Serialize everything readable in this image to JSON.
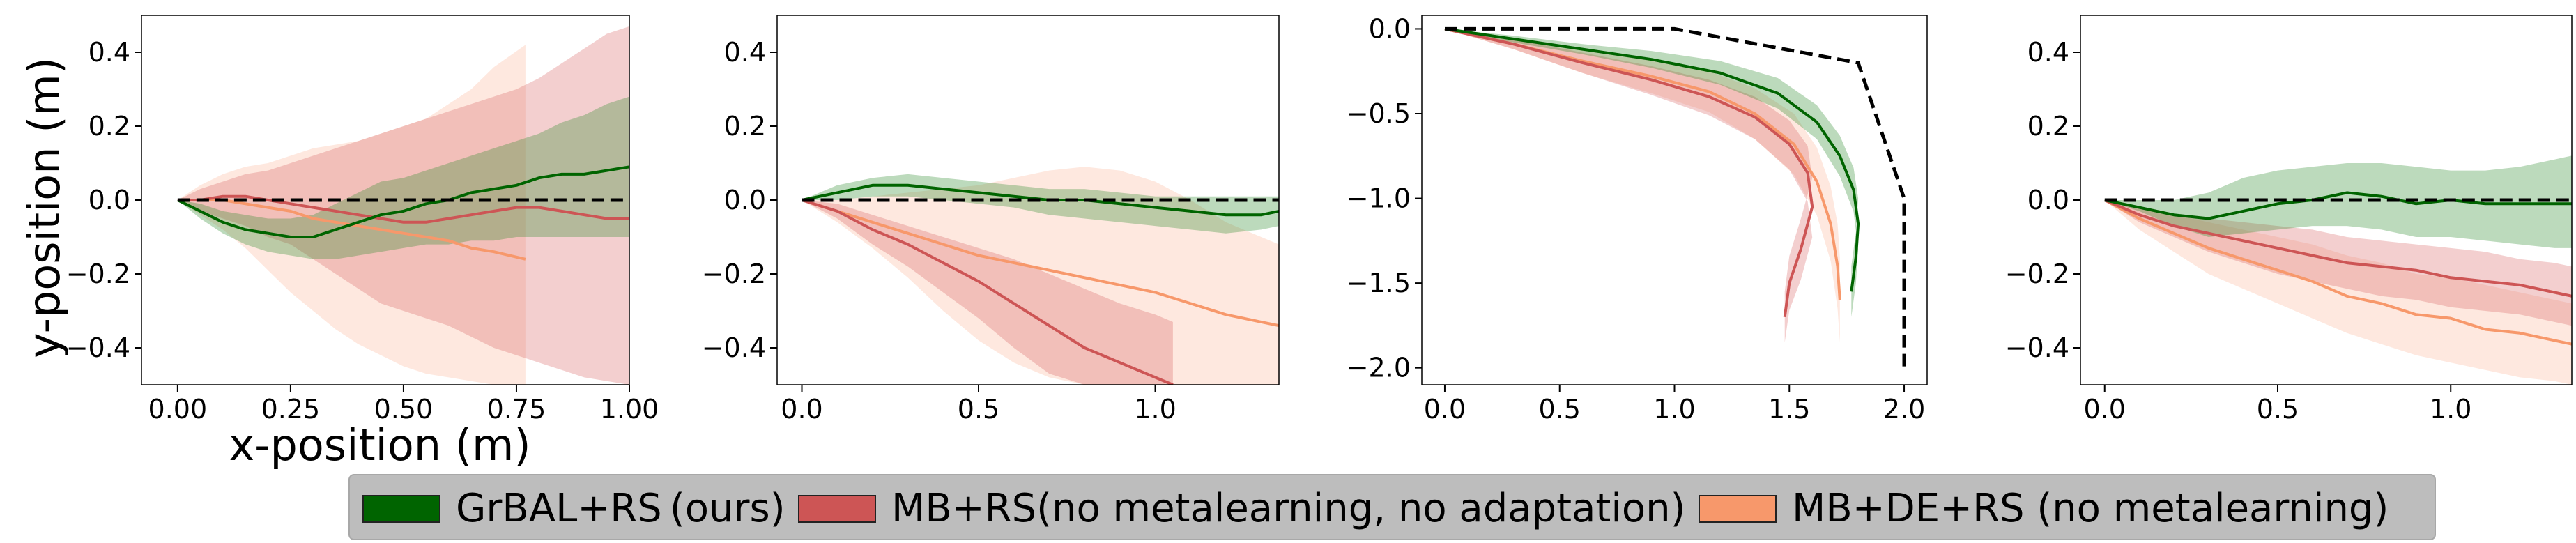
{
  "axis_labels": {
    "x": "x-position (m)",
    "y": "y-position (m)"
  },
  "legend": [
    {
      "label": "GrBAL+RS (ours)",
      "color": "#006400"
    },
    {
      "label": "MB+RS(no metalearning, no adaptation)",
      "color": "#cd5555"
    },
    {
      "label": "MB+DE+RS   (no metalearning)",
      "color": "#f7986b"
    }
  ],
  "chart_data": [
    {
      "type": "line",
      "panel": 1,
      "xlim": [
        -0.08,
        1.0
      ],
      "ylim": [
        -0.5,
        0.5
      ],
      "xticks": [
        0.0,
        0.25,
        0.5,
        0.75,
        1.0
      ],
      "xtick_labels": [
        "0.00",
        "0.25",
        "0.50",
        "0.75",
        "1.00"
      ],
      "yticks": [
        0.4,
        0.2,
        0.0,
        -0.2,
        -0.4
      ],
      "ytick_labels": [
        "0.4",
        "0.2",
        "0.0",
        "−0.2",
        "−0.4"
      ],
      "reference": {
        "x": [
          0.0,
          1.0
        ],
        "y": [
          0.0,
          0.0
        ]
      },
      "series": [
        {
          "name": "GrBAL+RS (ours)",
          "x": [
            0,
            0.05,
            0.1,
            0.15,
            0.2,
            0.25,
            0.3,
            0.35,
            0.4,
            0.45,
            0.5,
            0.55,
            0.6,
            0.65,
            0.7,
            0.75,
            0.8,
            0.85,
            0.9,
            0.95,
            1.0
          ],
          "mean": [
            0,
            -0.03,
            -0.06,
            -0.08,
            -0.09,
            -0.1,
            -0.1,
            -0.08,
            -0.06,
            -0.04,
            -0.03,
            -0.01,
            0.0,
            0.02,
            0.03,
            0.04,
            0.06,
            0.07,
            0.07,
            0.08,
            0.09
          ],
          "lower": [
            0,
            -0.05,
            -0.09,
            -0.12,
            -0.14,
            -0.15,
            -0.16,
            -0.16,
            -0.15,
            -0.14,
            -0.13,
            -0.12,
            -0.12,
            -0.11,
            -0.11,
            -0.1,
            -0.1,
            -0.1,
            -0.1,
            -0.1,
            -0.1
          ],
          "upper": [
            0,
            -0.01,
            -0.03,
            -0.04,
            -0.05,
            -0.05,
            -0.04,
            -0.01,
            0.02,
            0.05,
            0.06,
            0.08,
            0.1,
            0.12,
            0.14,
            0.16,
            0.18,
            0.21,
            0.23,
            0.26,
            0.28
          ]
        },
        {
          "name": "MB+RS (no metalearning, no adaptation)",
          "x": [
            0,
            0.05,
            0.1,
            0.15,
            0.2,
            0.25,
            0.3,
            0.35,
            0.4,
            0.45,
            0.5,
            0.55,
            0.6,
            0.65,
            0.7,
            0.75,
            0.8,
            0.85,
            0.9,
            0.95,
            1.0
          ],
          "mean": [
            0,
            0.0,
            0.01,
            0.01,
            0.0,
            -0.01,
            -0.02,
            -0.03,
            -0.04,
            -0.05,
            -0.06,
            -0.06,
            -0.05,
            -0.04,
            -0.03,
            -0.02,
            -0.02,
            -0.03,
            -0.04,
            -0.05,
            -0.05
          ],
          "lower": [
            0,
            -0.03,
            -0.05,
            -0.07,
            -0.1,
            -0.12,
            -0.16,
            -0.2,
            -0.24,
            -0.28,
            -0.3,
            -0.32,
            -0.34,
            -0.37,
            -0.4,
            -0.42,
            -0.44,
            -0.46,
            -0.48,
            -0.49,
            -0.5
          ],
          "upper": [
            0,
            0.03,
            0.05,
            0.07,
            0.08,
            0.1,
            0.12,
            0.14,
            0.16,
            0.18,
            0.2,
            0.22,
            0.24,
            0.26,
            0.28,
            0.3,
            0.33,
            0.37,
            0.41,
            0.45,
            0.47
          ]
        },
        {
          "name": "MB+DE+RS (no metalearning)",
          "x": [
            0,
            0.05,
            0.1,
            0.15,
            0.2,
            0.25,
            0.3,
            0.35,
            0.4,
            0.45,
            0.5,
            0.55,
            0.6,
            0.65,
            0.7,
            0.77
          ],
          "mean": [
            0,
            0.0,
            0.0,
            -0.01,
            -0.02,
            -0.03,
            -0.05,
            -0.06,
            -0.07,
            -0.08,
            -0.09,
            -0.1,
            -0.11,
            -0.13,
            -0.14,
            -0.16
          ],
          "lower": [
            0,
            -0.04,
            -0.08,
            -0.13,
            -0.19,
            -0.25,
            -0.3,
            -0.35,
            -0.39,
            -0.42,
            -0.45,
            -0.47,
            -0.48,
            -0.49,
            -0.5,
            -0.5
          ],
          "upper": [
            0,
            0.04,
            0.07,
            0.09,
            0.1,
            0.12,
            0.14,
            0.15,
            0.16,
            0.18,
            0.2,
            0.22,
            0.26,
            0.3,
            0.36,
            0.42
          ]
        }
      ]
    },
    {
      "type": "line",
      "panel": 2,
      "xlim": [
        -0.07,
        1.35
      ],
      "ylim": [
        -0.5,
        0.5
      ],
      "xticks": [
        0.0,
        0.5,
        1.0
      ],
      "xtick_labels": [
        "0.0",
        "0.5",
        "1.0"
      ],
      "yticks": [
        0.4,
        0.2,
        0.0,
        -0.2,
        -0.4
      ],
      "ytick_labels": [
        "0.4",
        "0.2",
        "0.0",
        "−0.2",
        "−0.4"
      ],
      "reference": {
        "x": [
          0.0,
          1.35
        ],
        "y": [
          0.0,
          0.0
        ]
      },
      "series": [
        {
          "name": "GrBAL+RS (ours)",
          "x": [
            0,
            0.1,
            0.2,
            0.3,
            0.4,
            0.5,
            0.6,
            0.7,
            0.8,
            0.9,
            1.0,
            1.1,
            1.2,
            1.3,
            1.35
          ],
          "mean": [
            0,
            0.02,
            0.04,
            0.04,
            0.03,
            0.02,
            0.01,
            0.0,
            0.0,
            -0.01,
            -0.02,
            -0.03,
            -0.04,
            -0.04,
            -0.03
          ],
          "lower": [
            0,
            0.0,
            0.01,
            0.01,
            0.0,
            -0.01,
            -0.02,
            -0.04,
            -0.05,
            -0.06,
            -0.07,
            -0.08,
            -0.09,
            -0.08,
            -0.07
          ],
          "upper": [
            0,
            0.04,
            0.06,
            0.07,
            0.06,
            0.05,
            0.04,
            0.03,
            0.03,
            0.02,
            0.01,
            0.01,
            0.01,
            0.01,
            0.01
          ]
        },
        {
          "name": "MB+RS (no metalearning, no adaptation)",
          "x": [
            0,
            0.1,
            0.2,
            0.3,
            0.4,
            0.5,
            0.6,
            0.7,
            0.8,
            0.9,
            1.0,
            1.05
          ],
          "mean": [
            0,
            -0.03,
            -0.08,
            -0.12,
            -0.17,
            -0.22,
            -0.28,
            -0.34,
            -0.4,
            -0.44,
            -0.48,
            -0.5
          ],
          "lower": [
            0,
            -0.05,
            -0.12,
            -0.18,
            -0.25,
            -0.32,
            -0.4,
            -0.47,
            -0.5,
            -0.5,
            -0.5,
            -0.5
          ],
          "upper": [
            0,
            -0.01,
            -0.04,
            -0.07,
            -0.1,
            -0.13,
            -0.16,
            -0.2,
            -0.24,
            -0.28,
            -0.31,
            -0.33
          ]
        },
        {
          "name": "MB+DE+RS (no metalearning)",
          "x": [
            0,
            0.1,
            0.2,
            0.3,
            0.4,
            0.5,
            0.6,
            0.7,
            0.8,
            0.9,
            1.0,
            1.1,
            1.2,
            1.3,
            1.35
          ],
          "mean": [
            0,
            -0.03,
            -0.06,
            -0.09,
            -0.12,
            -0.15,
            -0.17,
            -0.19,
            -0.21,
            -0.23,
            -0.25,
            -0.28,
            -0.31,
            -0.33,
            -0.34
          ],
          "lower": [
            0,
            -0.06,
            -0.13,
            -0.21,
            -0.3,
            -0.38,
            -0.44,
            -0.48,
            -0.5,
            -0.5,
            -0.5,
            -0.5,
            -0.5,
            -0.5,
            -0.5
          ],
          "upper": [
            0,
            0.0,
            0.01,
            0.02,
            0.03,
            0.04,
            0.06,
            0.08,
            0.09,
            0.08,
            0.05,
            0.0,
            -0.06,
            -0.1,
            -0.12
          ]
        }
      ]
    },
    {
      "type": "line",
      "panel": 3,
      "xlim": [
        -0.1,
        2.1
      ],
      "ylim": [
        -2.1,
        0.08
      ],
      "xticks": [
        0.0,
        0.5,
        1.0,
        1.5,
        2.0
      ],
      "xtick_labels": [
        "0.0",
        "0.5",
        "1.0",
        "1.5",
        "2.0"
      ],
      "yticks": [
        0.0,
        -0.5,
        -1.0,
        -1.5,
        -2.0
      ],
      "ytick_labels": [
        "0.0",
        "−0.5",
        "−1.0",
        "−1.5",
        "−2.0"
      ],
      "reference": {
        "x": [
          0.0,
          1.0,
          1.8,
          2.0,
          2.0
        ],
        "y": [
          0.0,
          0.0,
          -0.2,
          -1.0,
          -2.0
        ]
      },
      "series": [
        {
          "name": "GrBAL+RS (ours)",
          "x": [
            0,
            0.3,
            0.6,
            0.9,
            1.2,
            1.45,
            1.62,
            1.72,
            1.78,
            1.8,
            1.79,
            1.77
          ],
          "mean": [
            0,
            -0.06,
            -0.12,
            -0.18,
            -0.26,
            -0.38,
            -0.55,
            -0.75,
            -0.95,
            -1.15,
            -1.35,
            -1.55
          ],
          "lower": [
            0,
            -0.08,
            -0.15,
            -0.23,
            -0.33,
            -0.47,
            -0.65,
            -0.87,
            -1.08,
            -1.3,
            -1.5,
            -1.7
          ],
          "upper": [
            0,
            -0.04,
            -0.09,
            -0.13,
            -0.19,
            -0.29,
            -0.45,
            -0.63,
            -0.82,
            -1.0,
            -1.2,
            -1.4
          ]
        },
        {
          "name": "MB+RS (no metalearning, no adaptation)",
          "x": [
            0,
            0.3,
            0.6,
            0.9,
            1.15,
            1.35,
            1.5,
            1.58,
            1.6,
            1.55,
            1.5,
            1.48
          ],
          "mean": [
            0,
            -0.09,
            -0.2,
            -0.3,
            -0.4,
            -0.52,
            -0.68,
            -0.85,
            -1.05,
            -1.3,
            -1.5,
            -1.7
          ],
          "lower": [
            0,
            -0.12,
            -0.26,
            -0.39,
            -0.51,
            -0.65,
            -0.83,
            -1.02,
            -1.23,
            -1.48,
            -1.66,
            -1.85
          ],
          "upper": [
            0,
            -0.06,
            -0.14,
            -0.22,
            -0.3,
            -0.4,
            -0.54,
            -0.69,
            -0.88,
            -1.12,
            -1.34,
            -1.55
          ]
        },
        {
          "name": "MB+DE+RS (no metalearning)",
          "x": [
            0,
            0.3,
            0.6,
            0.9,
            1.15,
            1.35,
            1.52,
            1.62,
            1.68,
            1.71,
            1.72
          ],
          "mean": [
            0,
            -0.09,
            -0.19,
            -0.28,
            -0.37,
            -0.5,
            -0.68,
            -0.9,
            -1.15,
            -1.4,
            -1.6
          ],
          "lower": [
            0,
            -0.12,
            -0.26,
            -0.38,
            -0.49,
            -0.65,
            -0.86,
            -1.1,
            -1.37,
            -1.65,
            -1.85
          ],
          "upper": [
            0,
            -0.06,
            -0.12,
            -0.18,
            -0.25,
            -0.35,
            -0.5,
            -0.7,
            -0.93,
            -1.15,
            -1.35
          ]
        }
      ]
    },
    {
      "type": "line",
      "panel": 4,
      "xlim": [
        -0.07,
        1.35
      ],
      "ylim": [
        -0.5,
        0.5
      ],
      "xticks": [
        0.0,
        0.5,
        1.0
      ],
      "xtick_labels": [
        "0.0",
        "0.5",
        "1.0"
      ],
      "yticks": [
        0.4,
        0.2,
        0.0,
        -0.2,
        -0.4
      ],
      "ytick_labels": [
        "0.4",
        "0.2",
        "0.0",
        "−0.2",
        "−0.4"
      ],
      "reference": {
        "x": [
          0.0,
          1.35
        ],
        "y": [
          0.0,
          0.0
        ]
      },
      "series": [
        {
          "name": "GrBAL+RS (ours)",
          "x": [
            0,
            0.1,
            0.2,
            0.3,
            0.4,
            0.5,
            0.6,
            0.7,
            0.8,
            0.9,
            1.0,
            1.1,
            1.2,
            1.3,
            1.35
          ],
          "mean": [
            0,
            -0.02,
            -0.04,
            -0.05,
            -0.03,
            -0.01,
            0.0,
            0.02,
            0.01,
            -0.01,
            0.0,
            -0.01,
            -0.01,
            -0.01,
            -0.01
          ],
          "lower": [
            0,
            -0.03,
            -0.07,
            -0.1,
            -0.09,
            -0.08,
            -0.07,
            -0.07,
            -0.08,
            -0.1,
            -0.1,
            -0.11,
            -0.12,
            -0.13,
            -0.13
          ],
          "upper": [
            0,
            0.0,
            0.0,
            0.02,
            0.06,
            0.08,
            0.09,
            0.1,
            0.1,
            0.09,
            0.08,
            0.08,
            0.09,
            0.11,
            0.12
          ]
        },
        {
          "name": "MB+RS (no metalearning, no adaptation)",
          "x": [
            0,
            0.1,
            0.2,
            0.3,
            0.4,
            0.5,
            0.6,
            0.7,
            0.8,
            0.9,
            1.0,
            1.1,
            1.2,
            1.3,
            1.35
          ],
          "mean": [
            0,
            -0.04,
            -0.07,
            -0.09,
            -0.11,
            -0.13,
            -0.15,
            -0.17,
            -0.18,
            -0.19,
            -0.21,
            -0.22,
            -0.23,
            -0.25,
            -0.26
          ],
          "lower": [
            0,
            -0.06,
            -0.1,
            -0.14,
            -0.17,
            -0.2,
            -0.22,
            -0.24,
            -0.26,
            -0.27,
            -0.29,
            -0.3,
            -0.31,
            -0.33,
            -0.34
          ],
          "upper": [
            0,
            -0.02,
            -0.04,
            -0.05,
            -0.06,
            -0.07,
            -0.08,
            -0.1,
            -0.11,
            -0.12,
            -0.13,
            -0.14,
            -0.16,
            -0.17,
            -0.18
          ]
        },
        {
          "name": "MB+DE+RS (no metalearning)",
          "x": [
            0,
            0.1,
            0.2,
            0.3,
            0.4,
            0.5,
            0.6,
            0.7,
            0.8,
            0.9,
            1.0,
            1.1,
            1.2,
            1.3,
            1.35
          ],
          "mean": [
            0,
            -0.05,
            -0.09,
            -0.13,
            -0.16,
            -0.19,
            -0.22,
            -0.26,
            -0.28,
            -0.31,
            -0.32,
            -0.35,
            -0.36,
            -0.38,
            -0.39
          ],
          "lower": [
            0,
            -0.08,
            -0.14,
            -0.2,
            -0.24,
            -0.28,
            -0.32,
            -0.36,
            -0.39,
            -0.42,
            -0.44,
            -0.46,
            -0.48,
            -0.49,
            -0.5
          ],
          "upper": [
            0,
            -0.02,
            -0.04,
            -0.06,
            -0.08,
            -0.1,
            -0.12,
            -0.15,
            -0.17,
            -0.2,
            -0.21,
            -0.23,
            -0.25,
            -0.27,
            -0.28
          ]
        }
      ]
    }
  ]
}
